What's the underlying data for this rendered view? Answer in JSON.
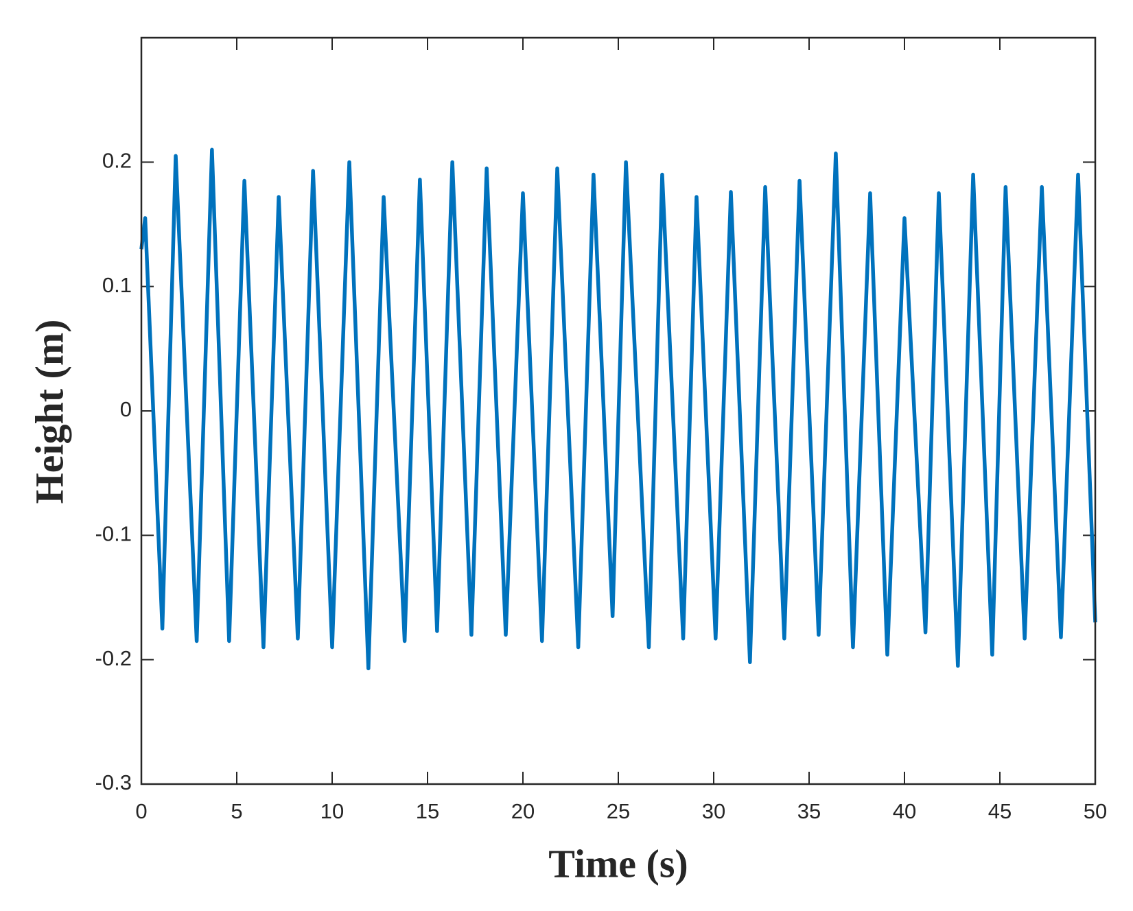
{
  "chart_data": {
    "type": "line",
    "xlabel": "Time (s)",
    "ylabel": "Height (m)",
    "x": [
      0,
      0.2,
      1.1,
      1.8,
      2.9,
      3.7,
      4.6,
      5.4,
      6.4,
      7.2,
      8.2,
      9.0,
      10.0,
      10.9,
      11.9,
      12.7,
      13.8,
      14.6,
      15.5,
      16.3,
      17.3,
      18.1,
      19.1,
      20.0,
      21.0,
      21.8,
      22.9,
      23.7,
      24.7,
      25.4,
      26.6,
      27.3,
      28.4,
      29.1,
      30.1,
      30.9,
      31.9,
      32.7,
      33.7,
      34.5,
      35.5,
      36.4,
      37.3,
      38.2,
      39.1,
      40.0,
      41.1,
      41.8,
      42.8,
      43.6,
      44.6,
      45.3,
      46.3,
      47.2,
      48.2,
      49.1,
      50
    ],
    "series": [
      {
        "name": "Height",
        "color": "#0072bd",
        "values": [
          0.13,
          0.155,
          -0.175,
          0.205,
          -0.185,
          0.21,
          -0.185,
          0.185,
          -0.19,
          0.172,
          -0.183,
          0.193,
          -0.19,
          0.2,
          -0.207,
          0.172,
          -0.185,
          0.186,
          -0.177,
          0.2,
          -0.18,
          0.195,
          -0.18,
          0.175,
          -0.185,
          0.195,
          -0.19,
          0.19,
          -0.165,
          0.2,
          -0.19,
          0.19,
          -0.183,
          0.172,
          -0.183,
          0.176,
          -0.202,
          0.18,
          -0.183,
          0.185,
          -0.18,
          0.207,
          -0.19,
          0.175,
          -0.196,
          0.155,
          -0.178,
          0.175,
          -0.205,
          0.19,
          -0.196,
          0.18,
          -0.183,
          0.18,
          -0.182,
          0.19,
          -0.17
        ]
      }
    ],
    "xlim": [
      0,
      50
    ],
    "xticks": [
      0,
      5,
      10,
      15,
      20,
      25,
      30,
      35,
      40,
      45,
      50
    ],
    "ylim": [
      -0.3,
      0.3
    ],
    "yticks": [
      -0.3,
      -0.2,
      -0.1,
      0,
      0.1,
      0.2
    ],
    "grid": false
  }
}
